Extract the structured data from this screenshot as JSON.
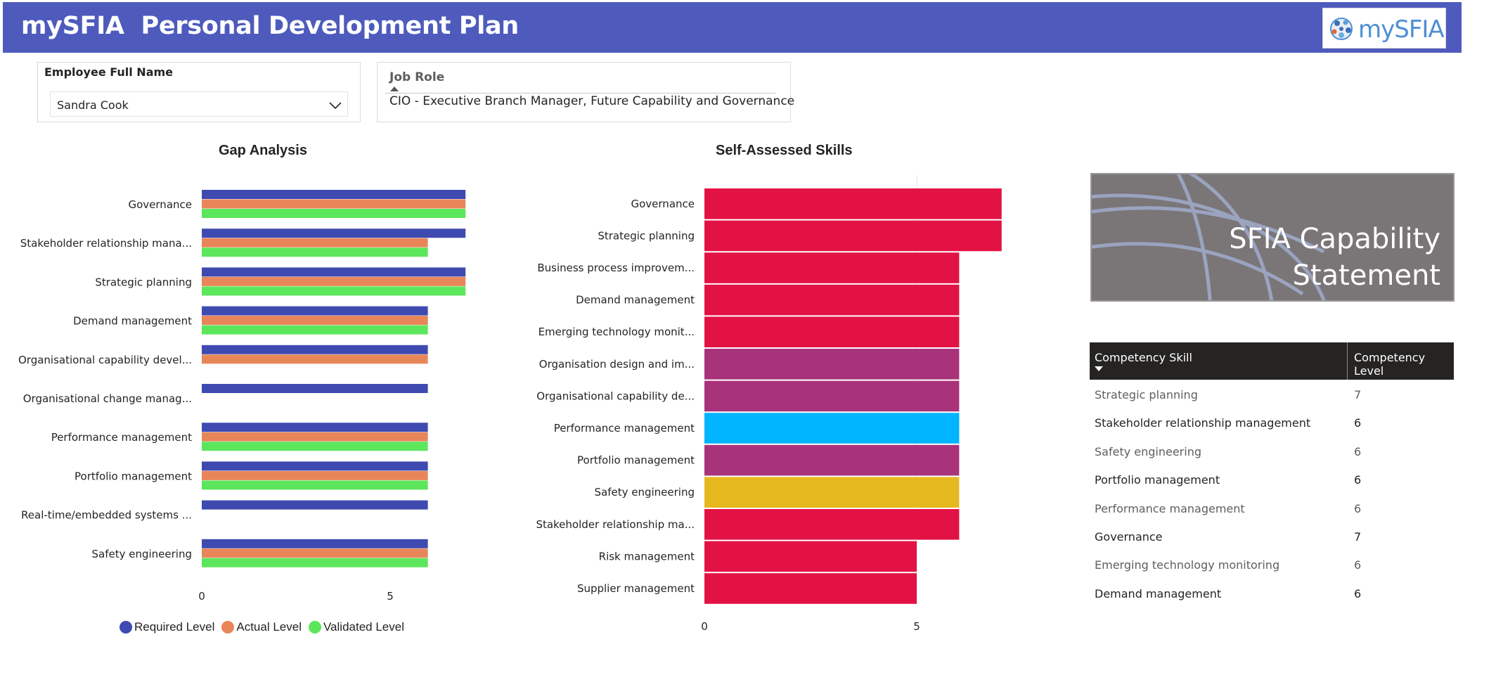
{
  "header": {
    "title": "mySFIA  Personal Development Plan",
    "logo_text": "mySFIA"
  },
  "employee_slicer": {
    "label": "Employee Full Name",
    "selected": "Sandra Cook"
  },
  "job_role": {
    "label": "Job Role",
    "value": "CIO - Executive Branch Manager, Future Capability and Governance"
  },
  "banner": {
    "line1": "SFIA Capability",
    "line2": "Statement"
  },
  "competency_table": {
    "headers": {
      "skill": "Competency Skill",
      "level": "Competency Level"
    },
    "rows": [
      {
        "skill": "Strategic planning",
        "level": "7"
      },
      {
        "skill": "Stakeholder relationship management",
        "level": "6"
      },
      {
        "skill": "Safety engineering",
        "level": "6"
      },
      {
        "skill": "Portfolio management",
        "level": "6"
      },
      {
        "skill": "Performance management",
        "level": "6"
      },
      {
        "skill": "Governance",
        "level": "7"
      },
      {
        "skill": "Emerging technology monitoring",
        "level": "6"
      },
      {
        "skill": "Demand management",
        "level": "6"
      }
    ]
  },
  "chart_data": [
    {
      "type": "bar",
      "orientation": "horizontal",
      "title": "Gap Analysis",
      "categories": [
        "Governance",
        "Stakeholder relationship mana...",
        "Strategic planning",
        "Demand management",
        "Organisational capability devel...",
        "Organisational change manag...",
        "Performance management",
        "Portfolio management",
        "Real-time/embedded systems ...",
        "Safety engineering"
      ],
      "series": [
        {
          "name": "Required Level",
          "color": "#3f4ab1",
          "values": [
            7,
            7,
            7,
            6,
            6,
            6,
            6,
            6,
            6,
            6
          ]
        },
        {
          "name": "Actual Level",
          "color": "#e8865a",
          "values": [
            7,
            6,
            7,
            6,
            6,
            null,
            6,
            6,
            null,
            6
          ]
        },
        {
          "name": "Validated Level",
          "color": "#5ce65c",
          "values": [
            7,
            6,
            7,
            6,
            null,
            null,
            6,
            6,
            null,
            6
          ]
        }
      ],
      "x_ticks": [
        "0",
        "5"
      ],
      "xlim": [
        0,
        10.3
      ],
      "legend_position": "bottom-left"
    },
    {
      "type": "bar",
      "orientation": "horizontal",
      "title": "Self-Assessed Skills",
      "categories": [
        "Governance",
        "Strategic planning",
        "Business process improvem...",
        "Demand management",
        "Emerging technology monit...",
        "Organisation design and im...",
        "Organisational capability de...",
        "Performance management",
        "Portfolio management",
        "Safety engineering",
        "Stakeholder relationship ma...",
        "Risk management",
        "Supplier management"
      ],
      "values": [
        7,
        7,
        6,
        6,
        6,
        6,
        6,
        6,
        6,
        6,
        6,
        5,
        5
      ],
      "colors": [
        "#e31245",
        "#e31245",
        "#e31245",
        "#e31245",
        "#e31245",
        "#a9337b",
        "#a9337b",
        "#00b4ff",
        "#a9337b",
        "#e6b820",
        "#e31245",
        "#e31245",
        "#e31245"
      ],
      "x_ticks": [
        "0",
        "5"
      ],
      "xlim": [
        0,
        10
      ]
    }
  ]
}
